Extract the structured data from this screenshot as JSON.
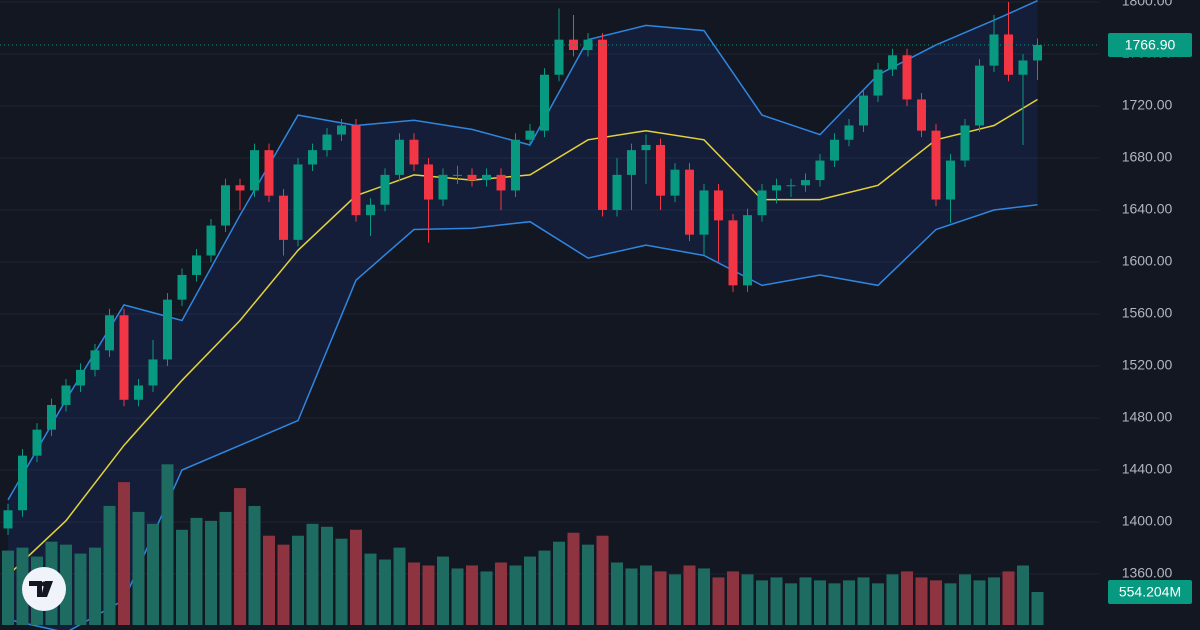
{
  "chart_data": {
    "type": "candlestick",
    "ylim": [
      1316.9,
      1801.5
    ],
    "yticks": [
      {
        "value": 1360,
        "label": "1360.00"
      },
      {
        "value": 1400,
        "label": "1400.00"
      },
      {
        "value": 1440,
        "label": "1440.00"
      },
      {
        "value": 1480,
        "label": "1480.00"
      },
      {
        "value": 1520,
        "label": "1520.00"
      },
      {
        "value": 1560,
        "label": "1560.00"
      },
      {
        "value": 1600,
        "label": "1600.00"
      },
      {
        "value": 1640,
        "label": "1640.00"
      },
      {
        "value": 1680,
        "label": "1680.00"
      },
      {
        "value": 1720,
        "label": "1720.00"
      },
      {
        "value": 1760,
        "label": "1760.00"
      },
      {
        "value": 1800,
        "label": "1800.00"
      }
    ],
    "grid": true,
    "up_color": "#089981",
    "down_color": "#f23645",
    "candles": {
      "open": [
        1395,
        1409,
        1451,
        1471,
        1490,
        1505,
        1517,
        1532,
        1559,
        1494,
        1505,
        1525,
        1571,
        1590,
        1605,
        1628,
        1659,
        1655,
        1686,
        1651,
        1617,
        1675,
        1686,
        1698,
        1705,
        1636,
        1644,
        1667,
        1694,
        1675,
        1648,
        1667,
        1667,
        1663,
        1667,
        1655,
        1694,
        1701,
        1744,
        1771,
        1763,
        1771,
        1640,
        1667,
        1686,
        1690,
        1651,
        1671,
        1621,
        1655,
        1632,
        1582,
        1636,
        1655,
        1659,
        1659,
        1663,
        1678,
        1694,
        1705,
        1728,
        1748,
        1759,
        1725,
        1701,
        1648,
        1678,
        1705,
        1751,
        1775,
        1744,
        1755
      ],
      "high": [
        1414,
        1456,
        1476,
        1495,
        1510,
        1522,
        1537,
        1564,
        1564,
        1510,
        1540,
        1576,
        1595,
        1610,
        1633,
        1664,
        1664,
        1691,
        1691,
        1656,
        1680,
        1691,
        1703,
        1710,
        1710,
        1649,
        1672,
        1699,
        1699,
        1680,
        1672,
        1674,
        1672,
        1672,
        1672,
        1699,
        1706,
        1749,
        1795,
        1790,
        1776,
        1776,
        1680,
        1691,
        1698,
        1695,
        1676,
        1676,
        1660,
        1660,
        1637,
        1641,
        1660,
        1664,
        1664,
        1668,
        1683,
        1699,
        1710,
        1733,
        1753,
        1764,
        1764,
        1730,
        1706,
        1683,
        1710,
        1756,
        1790,
        1800,
        1760,
        1772
      ],
      "low": [
        1390,
        1404,
        1446,
        1466,
        1485,
        1500,
        1512,
        1527,
        1489,
        1489,
        1500,
        1520,
        1566,
        1585,
        1600,
        1623,
        1640,
        1650,
        1646,
        1605,
        1612,
        1670,
        1681,
        1693,
        1631,
        1620,
        1639,
        1662,
        1670,
        1615,
        1643,
        1660,
        1658,
        1658,
        1640,
        1650,
        1689,
        1696,
        1739,
        1758,
        1758,
        1635,
        1635,
        1640,
        1660,
        1640,
        1646,
        1616,
        1605,
        1600,
        1577,
        1577,
        1631,
        1645,
        1650,
        1654,
        1658,
        1673,
        1689,
        1700,
        1723,
        1743,
        1720,
        1696,
        1643,
        1630,
        1673,
        1700,
        1746,
        1739,
        1690,
        1740
      ],
      "close": [
        1409,
        1451,
        1471,
        1490,
        1505,
        1517,
        1532,
        1559,
        1494,
        1505,
        1525,
        1571,
        1590,
        1605,
        1628,
        1659,
        1655,
        1686,
        1651,
        1617,
        1675,
        1686,
        1698,
        1705,
        1636,
        1644,
        1667,
        1694,
        1675,
        1648,
        1667,
        1667,
        1663,
        1667,
        1655,
        1694,
        1701,
        1744,
        1771,
        1763,
        1771,
        1640,
        1667,
        1686,
        1690,
        1651,
        1671,
        1621,
        1655,
        1632,
        1582,
        1636,
        1655,
        1659,
        1659,
        1663,
        1678,
        1694,
        1705,
        1728,
        1748,
        1759,
        1725,
        1701,
        1648,
        1678,
        1705,
        1751,
        1775,
        1744,
        1755,
        1766.9
      ],
      "value_labels": [
        null,
        null,
        null,
        null,
        null,
        null,
        null,
        null,
        null,
        null,
        null,
        null,
        null,
        null,
        null,
        null,
        null,
        null,
        null,
        null,
        null,
        null,
        null,
        null,
        null,
        null,
        null,
        null,
        null,
        null,
        null,
        null,
        null,
        null,
        null,
        null,
        null,
        null,
        null,
        null,
        null,
        null,
        null,
        null,
        null,
        null,
        null,
        null,
        null,
        null,
        null,
        null,
        null,
        null,
        null,
        null,
        null,
        null,
        null,
        null,
        null,
        null,
        null,
        null,
        null,
        null,
        null,
        null,
        null,
        null,
        null,
        "1766.90"
      ]
    },
    "volume": {
      "vlim": [
        0,
        10500
      ],
      "up_color": "#1d6b61",
      "down_color": "#8e3441",
      "values": [
        1250,
        1300,
        1150,
        1400,
        1350,
        1200,
        1300,
        2000,
        2400,
        1900,
        1700,
        2700,
        1600,
        1800,
        1750,
        1900,
        2300,
        2000,
        1500,
        1350,
        1500,
        1700,
        1650,
        1450,
        1600,
        1200,
        1100,
        1300,
        1050,
        1000,
        1150,
        950,
        1000,
        900,
        1050,
        1000,
        1150,
        1250,
        1400,
        1550,
        1350,
        1500,
        1050,
        950,
        1000,
        900,
        850,
        1000,
        950,
        800,
        900,
        850,
        750,
        800,
        700,
        800,
        750,
        700,
        750,
        800,
        700,
        850,
        900,
        800,
        750,
        700,
        850,
        750,
        800,
        900,
        1000,
        554.204
      ],
      "value_labels": [
        null,
        null,
        null,
        null,
        null,
        null,
        null,
        null,
        null,
        null,
        null,
        null,
        null,
        null,
        null,
        null,
        null,
        null,
        null,
        null,
        null,
        null,
        null,
        null,
        null,
        null,
        null,
        null,
        null,
        null,
        null,
        null,
        null,
        null,
        null,
        null,
        null,
        null,
        null,
        null,
        null,
        null,
        null,
        null,
        null,
        null,
        null,
        null,
        null,
        null,
        null,
        null,
        null,
        null,
        null,
        null,
        null,
        null,
        null,
        null,
        null,
        null,
        null,
        null,
        null,
        null,
        null,
        null,
        null,
        null,
        null,
        "554.204M"
      ]
    },
    "bands": {
      "band_color": "#2f86e0",
      "middle_color": "#e3d33a",
      "x": [
        0,
        4,
        8,
        12,
        16,
        20,
        24,
        28,
        32,
        36,
        40,
        44,
        48,
        52,
        56,
        60,
        64,
        68,
        71
      ],
      "upper": [
        1417,
        1494,
        1567,
        1555,
        1636,
        1713,
        1705,
        1709,
        1702,
        1690,
        1771,
        1782,
        1778,
        1713,
        1698,
        1744,
        1767,
        1786,
        1801
      ],
      "middle": [
        1359,
        1401,
        1459,
        1509,
        1555,
        1609,
        1651,
        1667,
        1663,
        1667,
        1694,
        1701,
        1694,
        1648,
        1648,
        1659,
        1694,
        1705,
        1725
      ],
      "lower": [
        1325,
        1315,
        1340,
        1440,
        1459,
        1478,
        1586,
        1625,
        1626,
        1631,
        1603,
        1613,
        1605,
        1582,
        1590,
        1582,
        1625,
        1640,
        1644
      ]
    }
  }
}
